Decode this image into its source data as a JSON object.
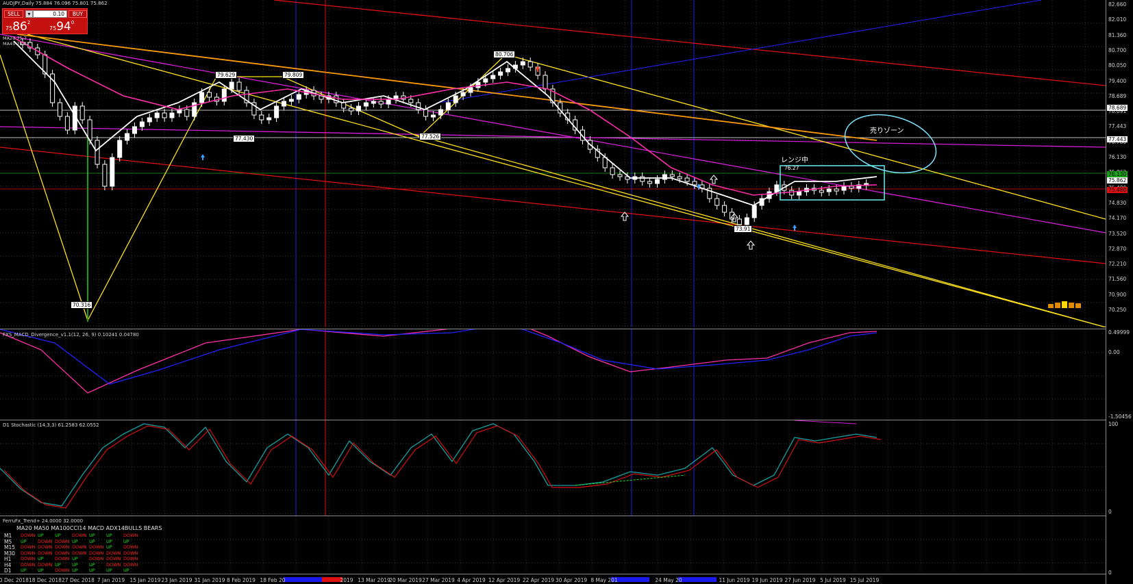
{
  "chart_header": {
    "symbol_line": "AUDJPY,Daily  75.884 76.096 75.801 75.862"
  },
  "trade_panel": {
    "sell_label": "SELL",
    "buy_label": "BUY",
    "lot_value": "0.10",
    "lot_down": "▾",
    "sell_price_small": "75",
    "sell_price_big": "86",
    "sell_price_sup": "2",
    "buy_price_small": "75",
    "buy_price_big": "94",
    "buy_price_sup": "0"
  },
  "ma_labels": {
    "ma1": "MA20 75.7",
    "ma2": "MA40 75.42"
  },
  "price_axis": {
    "labels": [
      "82.660",
      "82.010",
      "81.360",
      "80.700",
      "80.050",
      "79.400",
      "78.689",
      "78.091",
      "77.443",
      "76.780",
      "76.130",
      "75.862",
      "75.480",
      "74.830",
      "74.170",
      "73.520",
      "72.870",
      "72.210",
      "71.560",
      "70.900",
      "70.250"
    ],
    "badges": [
      {
        "text": "78.689",
        "color": "#ffffff"
      },
      {
        "text": "77.443",
        "color": "#ffffff"
      },
      {
        "text": "76.130",
        "color": "#18a018"
      },
      {
        "text": "75.862",
        "color": "#ffffff"
      },
      {
        "text": "75.480",
        "color": "#e01010"
      }
    ]
  },
  "price_flags": {
    "f1": "70.316",
    "f2": "79.629",
    "f3": "79.809",
    "f4": "77.430",
    "f5": "77.526",
    "f6": "80.706",
    "f7": "76.27",
    "f8": "73.91"
  },
  "annotations": {
    "zone": "売りゾーン",
    "range": "レンジ中"
  },
  "macd": {
    "title": "FXS_MACD_Divergence_v1.1(12, 26, 9) 0.10241 0.04780",
    "axis": [
      "0.49999",
      "0.00",
      "-1.50456"
    ]
  },
  "stoch": {
    "title": "D1 Stochastic (14,3,3) 61.2583 62.0552",
    "axis": [
      "100",
      "0"
    ]
  },
  "trend_panel": {
    "title": "FerruFx_Trend+ 24.0000 32.0000",
    "columns": "MA20  MA50 MA100CCI14 MACD ADX14BULLS BEARS",
    "axis_top": "0",
    "rows": [
      {
        "tf": "M1",
        "cells": [
          "DOWN",
          "UP",
          "UP",
          "DOWN",
          "UP",
          "UP",
          "DOWN"
        ]
      },
      {
        "tf": "M5",
        "cells": [
          "UP",
          "DOWN",
          "DOWN",
          "UP",
          "UP",
          "UP",
          "UP"
        ]
      },
      {
        "tf": "M15",
        "cells": [
          "DOWN",
          "DOWN",
          "DOWN",
          "DOWN",
          "DOWN",
          "UP",
          "DOWN"
        ]
      },
      {
        "tf": "M30",
        "cells": [
          "DOWN",
          "DOWN",
          "DOWN",
          "DOWN",
          "DOWN",
          "DOWN",
          "DOWN"
        ]
      },
      {
        "tf": "H1",
        "cells": [
          "DOWN",
          "UP",
          "DOWN",
          "UP",
          "DOWN",
          "DOWN",
          "DOWN"
        ]
      },
      {
        "tf": "H4",
        "cells": [
          "DOWN",
          "DOWN",
          "UP",
          "UP",
          "UP",
          "DOWN",
          "DOWN"
        ]
      },
      {
        "tf": "D1",
        "cells": [
          "UP",
          "UP",
          "DOWN",
          "UP",
          "UP",
          "UP",
          "UP"
        ]
      }
    ]
  },
  "time_axis": [
    "10 Dec 2018",
    "18 Dec 2018",
    "27 Dec 2018",
    "7 Jan 2019",
    "15 Jan 2019",
    "23 Jan 2019",
    "31 Jan 2019",
    "8 Feb 2019",
    "18 Feb 20",
    "2019",
    "13 Mar 2019",
    "20 Mar 2019",
    "27 Mar 2019",
    "4 Apr 2019",
    "12 Apr 2019",
    "22 Apr 2019",
    "30 Apr 2019",
    "8 May 201",
    "24 May 20",
    "11 Jun 2019",
    "19 Jun 2019",
    "27 Jun 2019",
    "5 Jul 2019",
    "15 Jul 2019"
  ],
  "colors": {
    "bg": "#000000",
    "grid": "#3a3a3a",
    "candle": "#ffffff",
    "ma_fast": "#ffffff",
    "ma_pink": "#ff2ea8",
    "ma_orange": "#ff9b0a",
    "trend_yellow": "#ffe21a",
    "trend_red": "#e01010",
    "trend_magenta": "#d61ed6",
    "trend_blue": "#2222ff",
    "zone_circle": "#7fe3ff",
    "range_box": "#66f0f0"
  }
}
